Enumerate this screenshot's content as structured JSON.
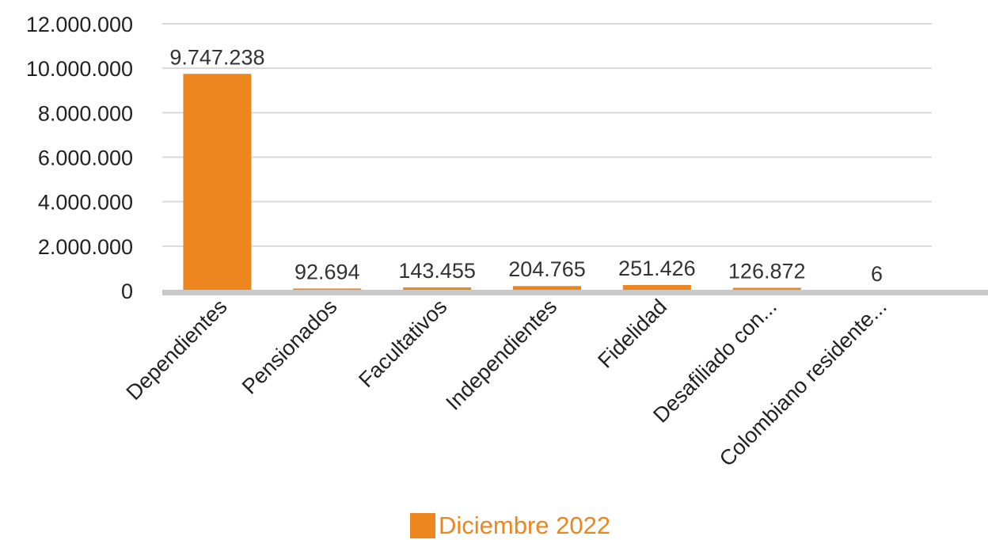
{
  "chart_data": {
    "type": "bar",
    "categories": [
      "Dependientes",
      "Pensionados",
      "Facultativos",
      "Independientes",
      "Fidelidad",
      "Desafiliado con...",
      "Colombiano residente..."
    ],
    "series": [
      {
        "name": "Diciembre 2022",
        "values": [
          9747238,
          92694,
          143455,
          204765,
          251426,
          126872,
          6
        ],
        "value_labels": [
          "9.747.238",
          "92.694",
          "143.455",
          "204.765",
          "251.426",
          "126.872",
          "6"
        ],
        "color": "#ee8620"
      }
    ],
    "yticks": [
      0,
      2000000,
      4000000,
      6000000,
      8000000,
      10000000,
      12000000
    ],
    "ytick_labels": [
      "0",
      "2.000.000",
      "4.000.000",
      "6.000.000",
      "8.000.000",
      "10.000.000",
      "12.000.000"
    ],
    "ylim": [
      0,
      12000000
    ],
    "grid": true,
    "legend_position": "bottom",
    "colors": {
      "bar": "#ee8620",
      "grid": "#d9d9d9",
      "axis": "#c8c8c8",
      "legend_text": "#ee8620"
    }
  }
}
